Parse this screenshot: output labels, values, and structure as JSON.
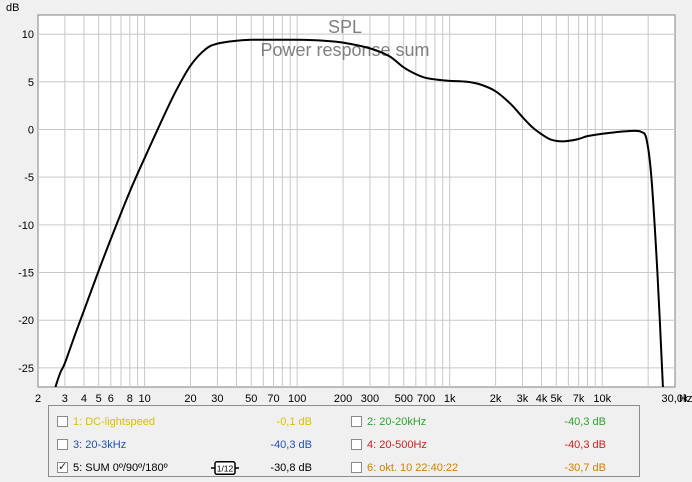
{
  "chart_data": {
    "type": "line",
    "title": "SPL",
    "subtitle": "Power response sum",
    "ylabel": "dB",
    "xlabel": "Hz",
    "xscale": "log",
    "xlim": [
      2,
      30000
    ],
    "ylim": [
      -27,
      12
    ],
    "y_ticks": [
      "10",
      "5",
      "0",
      "-5",
      "-10",
      "-15",
      "-20",
      "-25"
    ],
    "y_tick_values": [
      10,
      5,
      0,
      -5,
      -10,
      -15,
      -20,
      -25
    ],
    "x_ticks": [
      "2",
      "3",
      "4",
      "5",
      "6",
      "8",
      "10",
      "20",
      "30",
      "50",
      "70",
      "100",
      "200",
      "300",
      "500",
      "700",
      "1k",
      "2k",
      "3k",
      "4k",
      "5k",
      "7k",
      "10k",
      "30,0k"
    ],
    "x_tick_values": [
      2,
      3,
      4,
      5,
      6,
      8,
      10,
      20,
      30,
      50,
      70,
      100,
      200,
      300,
      500,
      700,
      1000,
      2000,
      3000,
      4000,
      5000,
      7000,
      10000,
      30000
    ],
    "grid": true,
    "series": [
      {
        "color": "#000000",
        "x": [
          2.6,
          2.8,
          3,
          3.5,
          4,
          5,
          6,
          8,
          10,
          13,
          16,
          20,
          25,
          30,
          40,
          50,
          70,
          100,
          150,
          200,
          300,
          400,
          500,
          600,
          700,
          850,
          1000,
          1300,
          1600,
          2000,
          2500,
          3000,
          3500,
          4000,
          4500,
          5000,
          5500,
          6000,
          7000,
          8000,
          10000,
          12000,
          14000,
          16000,
          18000,
          19500,
          21000,
          23000,
          25000
        ],
        "y": [
          -27,
          -25.5,
          -24.5,
          -21.5,
          -19,
          -14.8,
          -11.5,
          -6.5,
          -3,
          1,
          4,
          6.7,
          8.4,
          9,
          9.3,
          9.4,
          9.4,
          9.4,
          9.3,
          9.1,
          8.5,
          7.7,
          6.5,
          5.8,
          5.4,
          5.2,
          5.1,
          5.0,
          4.7,
          4.0,
          2.7,
          1.3,
          0.2,
          -0.5,
          -1.0,
          -1.2,
          -1.25,
          -1.2,
          -1.0,
          -0.7,
          -0.45,
          -0.3,
          -0.2,
          -0.15,
          -0.25,
          -1.0,
          -5.0,
          -15.0,
          -27.0
        ]
      }
    ]
  },
  "legend": {
    "items": [
      {
        "checked": false,
        "label": "1: DC-lightspeed",
        "value": "-0,1 dB",
        "color": "#d8c000"
      },
      {
        "checked": false,
        "label": "2: 20-20kHz",
        "value": "-40,3 dB",
        "color": "#30a030"
      },
      {
        "checked": false,
        "label": "3: 20-3kHz",
        "value": "-40,3 dB",
        "color": "#2050b0"
      },
      {
        "checked": false,
        "label": "4: 20-500Hz",
        "value": "-40,3 dB",
        "color": "#d02020"
      },
      {
        "checked": true,
        "label": "5: SUM 0º/90º/180º",
        "value": "-30,8 dB",
        "color": "#000000"
      },
      {
        "checked": false,
        "label": "6: okt. 10 22:40:22",
        "value": "-30,7 dB",
        "color": "#d08000"
      }
    ],
    "smoothing_badge": "1/12"
  },
  "colors": {
    "plot_bg": "#ffffff",
    "grid": "#c8c8c8",
    "frame": "#808080",
    "title": "#808080"
  }
}
